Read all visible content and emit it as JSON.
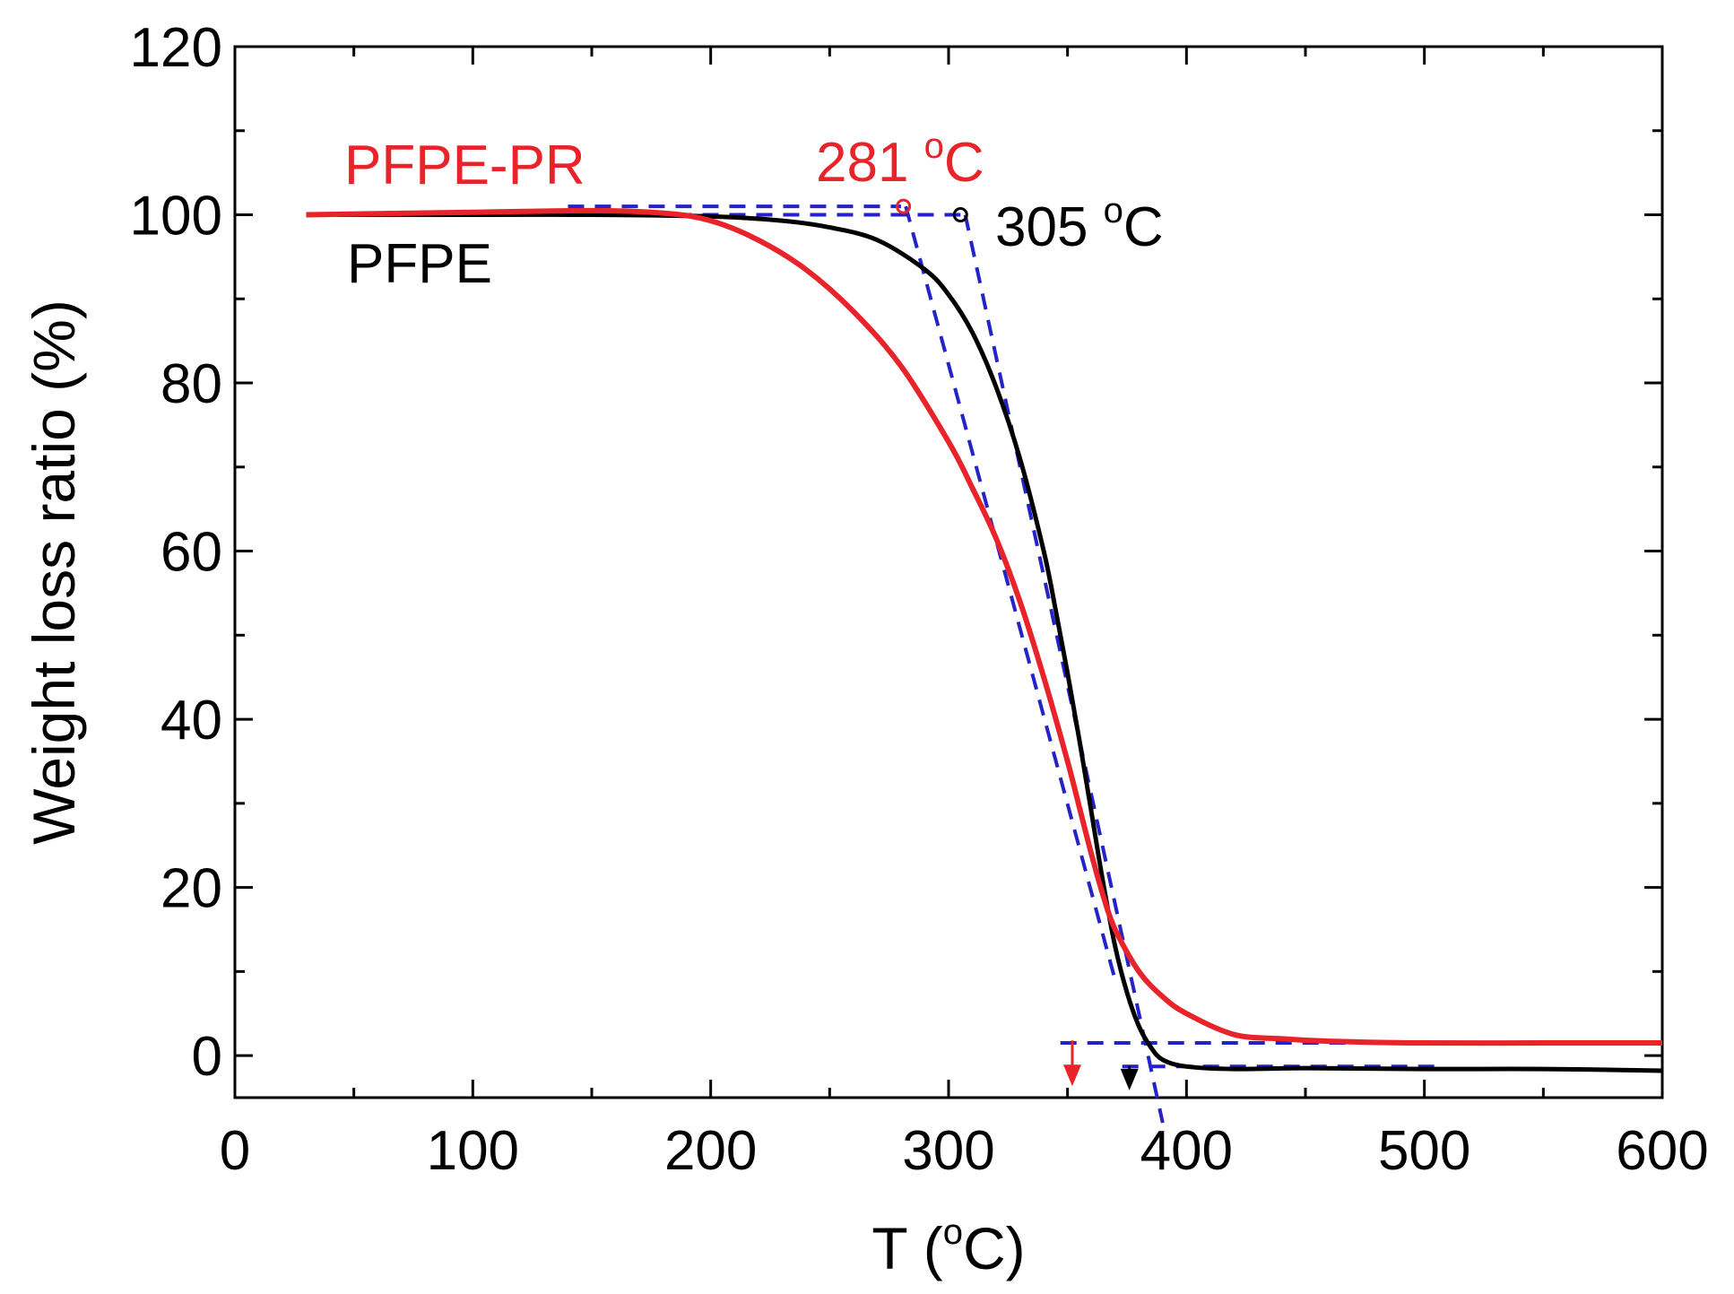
{
  "chart_data": {
    "type": "line",
    "title": "",
    "xlabel": {
      "main": "T (",
      "sup": "o",
      "tail": "C)"
    },
    "ylabel": "Weight loss ratio (%)",
    "xlim": [
      0,
      600
    ],
    "ylim": [
      -5,
      120
    ],
    "xticks": [
      0,
      100,
      200,
      300,
      400,
      500,
      600
    ],
    "yticks": [
      0,
      20,
      40,
      60,
      80,
      100,
      120
    ],
    "grid": false,
    "legend": [
      {
        "label": "PFPE-PR",
        "color": "#e8232a"
      },
      {
        "label": "PFPE",
        "color": "#000000"
      }
    ],
    "series": [
      {
        "name": "PFPE",
        "color": "#000000",
        "x": [
          30,
          100,
          150,
          200,
          230,
          250,
          270,
          290,
          300,
          310,
          320,
          330,
          340,
          345,
          350,
          355,
          360,
          365,
          370,
          375,
          380,
          385,
          390,
          400,
          420,
          450,
          500,
          550,
          600
        ],
        "y": [
          100,
          100,
          100,
          99.8,
          99.3,
          98.5,
          97,
          93.5,
          90.5,
          86,
          79.5,
          71,
          60,
          53,
          45.5,
          37.5,
          29,
          20.5,
          13,
          7.5,
          3.5,
          1,
          -0.5,
          -1.3,
          -1.6,
          -1.5,
          -1.6,
          -1.6,
          -1.8
        ]
      },
      {
        "name": "PFPE-PR",
        "color": "#e8232a",
        "x": [
          30,
          100,
          150,
          180,
          200,
          220,
          240,
          260,
          280,
          300,
          310,
          320,
          330,
          340,
          350,
          355,
          360,
          365,
          370,
          380,
          390,
          400,
          420,
          440,
          460,
          500,
          550,
          600
        ],
        "y": [
          100,
          100.3,
          100.5,
          100.2,
          99.3,
          97,
          93.5,
          88.5,
          82,
          73,
          67.5,
          61.5,
          54,
          45,
          35,
          29.5,
          24,
          19,
          15,
          10,
          7,
          5,
          2.5,
          2,
          1.7,
          1.5,
          1.5,
          1.5
        ]
      }
    ],
    "tangent_lines": [
      {
        "points": [
          [
            140,
            101
          ],
          [
            280,
            101
          ]
        ],
        "color": "#2323c8"
      },
      {
        "points": [
          [
            140,
            100
          ],
          [
            305,
            100
          ]
        ],
        "color": "#2323c8"
      },
      {
        "points": [
          [
            282,
            101
          ],
          [
            370,
            9
          ]
        ],
        "color": "#2323c8"
      },
      {
        "points": [
          [
            307,
            100
          ],
          [
            390,
            -8
          ]
        ],
        "color": "#2323c8"
      },
      {
        "points": [
          [
            347,
            1.5
          ],
          [
            490,
            1.5
          ]
        ],
        "color": "#2323c8"
      },
      {
        "points": [
          [
            373,
            -1.3
          ],
          [
            505,
            -1.3
          ]
        ],
        "color": "#2323c8"
      }
    ],
    "onset_points": [
      {
        "x": 281,
        "y": 101,
        "color": "#e8232a"
      },
      {
        "x": 305,
        "y": 100,
        "color": "#000000"
      }
    ],
    "end_markers": [
      {
        "x": 352,
        "y_from": 1.8,
        "y_to": -3,
        "color": "#e8232a"
      },
      {
        "x": 376,
        "y_from": -1.2,
        "y_to": -3.5,
        "color": "#000000"
      }
    ],
    "annotations": [
      {
        "id": "pfpe_pr_onset",
        "value": "281 ",
        "sup": "o",
        "unit": "C",
        "color": "#e8232a"
      },
      {
        "id": "pfpe_onset",
        "value": "305 ",
        "sup": "o",
        "unit": "C",
        "color": "#000000"
      }
    ]
  }
}
